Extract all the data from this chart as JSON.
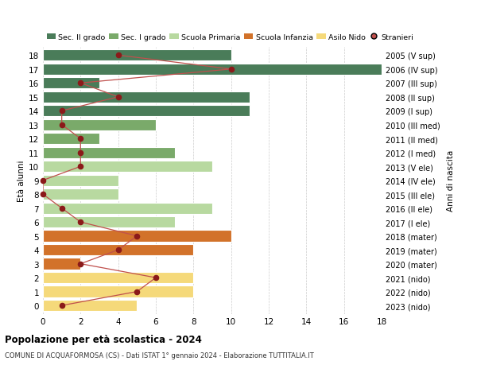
{
  "ages": [
    18,
    17,
    16,
    15,
    14,
    13,
    12,
    11,
    10,
    9,
    8,
    7,
    6,
    5,
    4,
    3,
    2,
    1,
    0
  ],
  "years": [
    "2005 (V sup)",
    "2006 (IV sup)",
    "2007 (III sup)",
    "2008 (II sup)",
    "2009 (I sup)",
    "2010 (III med)",
    "2011 (II med)",
    "2012 (I med)",
    "2013 (V ele)",
    "2014 (IV ele)",
    "2015 (III ele)",
    "2016 (II ele)",
    "2017 (I ele)",
    "2018 (mater)",
    "2019 (mater)",
    "2020 (mater)",
    "2021 (nido)",
    "2022 (nido)",
    "2023 (nido)"
  ],
  "bar_values": [
    10,
    18,
    3,
    11,
    11,
    6,
    3,
    7,
    9,
    4,
    4,
    9,
    7,
    10,
    8,
    2,
    8,
    8,
    5
  ],
  "stranieri": [
    4,
    10,
    2,
    4,
    1,
    1,
    2,
    2,
    2,
    0,
    0,
    1,
    2,
    5,
    4,
    2,
    6,
    5,
    1
  ],
  "bar_colors": [
    "#4a7c59",
    "#4a7c59",
    "#4a7c59",
    "#4a7c59",
    "#4a7c59",
    "#7aaa6a",
    "#7aaa6a",
    "#7aaa6a",
    "#b8d9a0",
    "#b8d9a0",
    "#b8d9a0",
    "#b8d9a0",
    "#b8d9a0",
    "#d2722a",
    "#d2722a",
    "#d2722a",
    "#f5d97a",
    "#f5d97a",
    "#f5d97a"
  ],
  "stranieri_dot_color": "#8b1a1a",
  "stranieri_line_color": "#c0504d",
  "legend_labels": [
    "Sec. II grado",
    "Sec. I grado",
    "Scuola Primaria",
    "Scuola Infanzia",
    "Asilo Nido",
    "Stranieri"
  ],
  "legend_colors": [
    "#4a7c59",
    "#7aaa6a",
    "#b8d9a0",
    "#d2722a",
    "#f5d97a",
    "#c0504d"
  ],
  "ylabel_left": "Età alunni",
  "ylabel_right": "Anni di nascita",
  "xlim": [
    0,
    18
  ],
  "xticks": [
    0,
    2,
    4,
    6,
    8,
    10,
    12,
    14,
    16,
    18
  ],
  "title": "Popolazione per età scolastica - 2024",
  "subtitle": "COMUNE DI ACQUAFORMOSA (CS) - Dati ISTAT 1° gennaio 2024 - Elaborazione TUTTITALIA.IT",
  "bg_color": "#ffffff",
  "grid_color": "#cccccc"
}
